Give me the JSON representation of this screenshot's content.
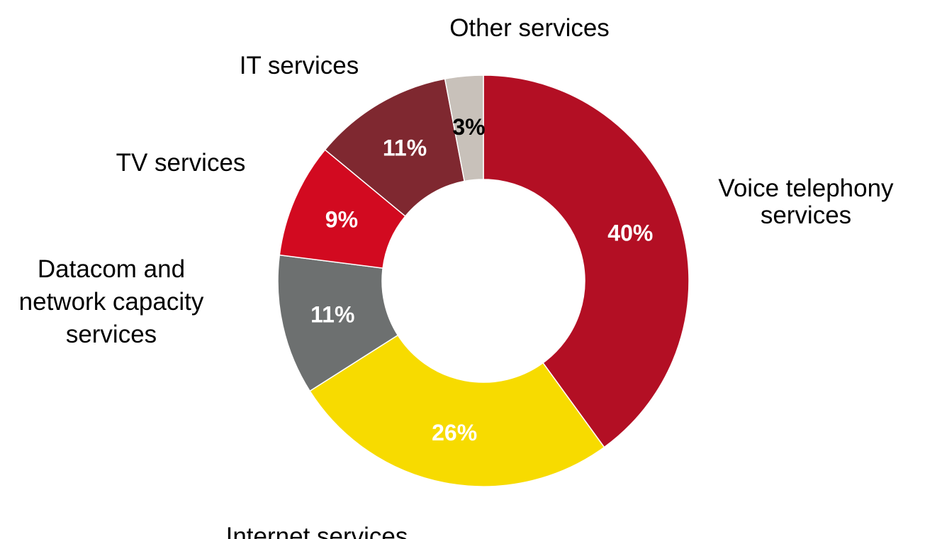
{
  "chart_data": {
    "type": "pie",
    "donut": true,
    "start_angle": "12 o'clock",
    "direction": "clockwise",
    "legend": "none (category labels placed outside slices)",
    "categories": [
      "Voice telephony services",
      "Internet services",
      "Datacom and network capacity services",
      "TV services",
      "IT services",
      "Other services"
    ],
    "values": [
      40,
      26,
      11,
      9,
      11,
      3
    ],
    "value_labels": [
      "40%",
      "26%",
      "11%",
      "9%",
      "11%",
      "3%"
    ],
    "category_label_lines": [
      [
        "Voice telephony",
        "services"
      ],
      [
        "Internet services"
      ],
      [
        "Datacom and",
        "network capacity",
        "services"
      ],
      [
        "TV services"
      ],
      [
        "IT services"
      ],
      [
        "Other services"
      ]
    ],
    "colors": [
      "#B30F24",
      "#F7DB00",
      "#6D7070",
      "#D20A20",
      "#7F2830",
      "#C8C1BA"
    ],
    "value_label_colors": [
      "#ffffff",
      "#ffffff",
      "#ffffff",
      "#ffffff",
      "#ffffff",
      "#000000"
    ]
  }
}
